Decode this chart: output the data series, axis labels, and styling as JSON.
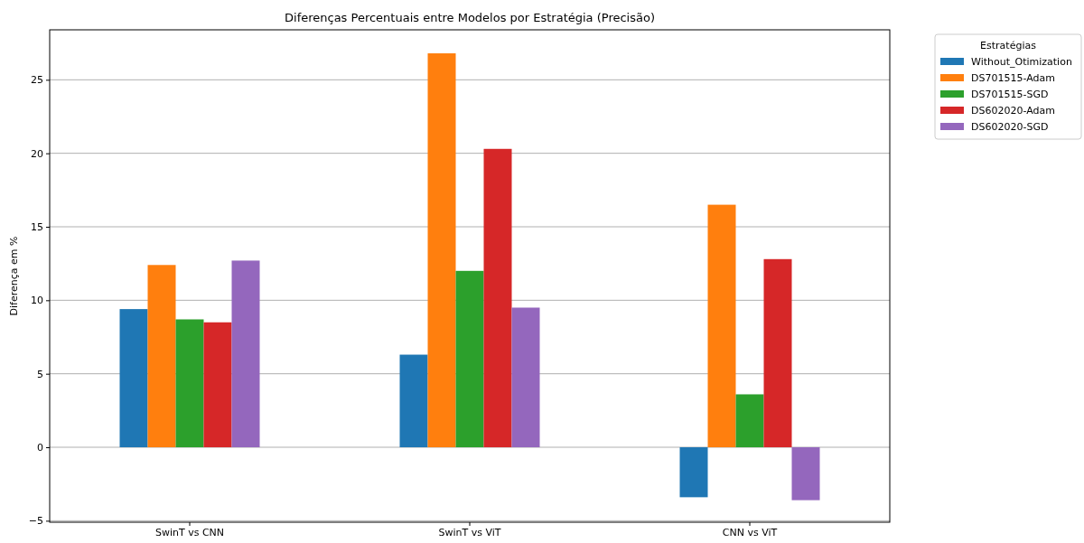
{
  "chart_data": {
    "type": "bar",
    "title": "Diferenças Percentuais entre Modelos por Estratégia (Precisão)",
    "ylabel": "Diferença em %",
    "legend_title": "Estratégias",
    "categories": [
      "SwinT vs CNN",
      "SwinT vs ViT",
      "CNN vs ViT"
    ],
    "series": [
      {
        "name": "Without_Otimization",
        "color": "#1f77b4",
        "values": [
          9.4,
          6.3,
          -3.4
        ]
      },
      {
        "name": "DS701515-Adam",
        "color": "#ff7f0e",
        "values": [
          12.4,
          26.8,
          16.5
        ]
      },
      {
        "name": "DS701515-SGD",
        "color": "#2ca02c",
        "values": [
          8.7,
          12.0,
          3.6
        ]
      },
      {
        "name": "DS602020-Adam",
        "color": "#d62728",
        "values": [
          8.5,
          20.3,
          12.8
        ]
      },
      {
        "name": "DS602020-SGD",
        "color": "#9467bd",
        "values": [
          12.7,
          9.5,
          -3.6
        ]
      }
    ],
    "ylim": [
      -5.1,
      28.4
    ],
    "yticks": [
      {
        "value": -5,
        "label": "−5"
      },
      0,
      5,
      10,
      15,
      20,
      25
    ],
    "grid": "y",
    "legend": "top right"
  }
}
